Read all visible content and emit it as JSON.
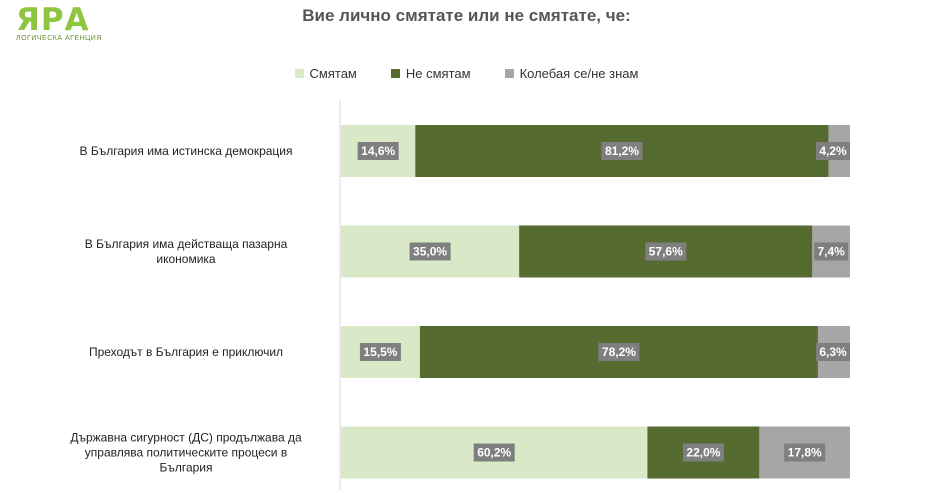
{
  "logo": {
    "mark": "ЯРА",
    "subtitle": "ЛОГИЧЕСКА АГЕНЦИЯ"
  },
  "colors": {
    "agree": "#d9e8c6",
    "disagree": "#556b2f",
    "unsure": "#a6a6a6",
    "brand": "#8dc63f"
  },
  "chart_data": {
    "type": "bar",
    "orientation": "horizontal",
    "stacked": true,
    "title": "Вие лично смятате или не смятате, че:",
    "categories": [
      "В България има истинска демокрация",
      "В България има действаща пазарна икономика",
      "Преходът в България е приключил",
      "Държавна сигурност (ДС) продължава да управлява политическите процеси в България"
    ],
    "category_lines": [
      [
        "В България има истинска демокрация"
      ],
      [
        "В България има действаща пазарна",
        "икономика"
      ],
      [
        "Преходът в България е приключил"
      ],
      [
        "Държавна сигурност (ДС) продължава да",
        "управлява политическите процеси в",
        "България"
      ]
    ],
    "series": [
      {
        "name": "Смятам",
        "values": [
          14.6,
          35.0,
          15.5,
          60.2
        ],
        "labels": [
          "14,6%",
          "35,0%",
          "15,5%",
          "60,2%"
        ]
      },
      {
        "name": "Не смятам",
        "values": [
          81.2,
          57.6,
          78.2,
          22.0
        ],
        "labels": [
          "81,2%",
          "57,6%",
          "78,2%",
          "22,0%"
        ]
      },
      {
        "name": "Колебая се/не знам",
        "values": [
          4.2,
          7.4,
          6.3,
          17.8
        ],
        "labels": [
          "4,2%",
          "7,4%",
          "6,3%",
          "17,8%"
        ]
      }
    ],
    "xlim": [
      0,
      100
    ],
    "legend": "top-center",
    "grid": false
  }
}
